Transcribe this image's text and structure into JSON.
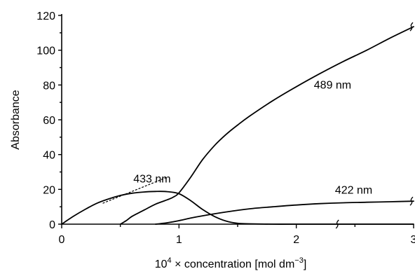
{
  "chart_data": {
    "type": "line",
    "title": "",
    "xlabel": {
      "main": "10",
      "sup": "4",
      "mid": " × concentration [mol dm",
      "unit_sup": "−3",
      "end": "]"
    },
    "ylabel": "Absorbance",
    "xlim": [
      0,
      3
    ],
    "ylim": [
      0,
      120
    ],
    "x_ticks": [
      0,
      1,
      2,
      3
    ],
    "x_tick_labels": [
      "0",
      "1",
      "2",
      "3"
    ],
    "y_ticks": [
      0,
      20,
      40,
      60,
      80,
      100,
      120
    ],
    "y_tick_labels": [
      "0",
      "20",
      "40",
      "60",
      "80",
      "100",
      "120"
    ],
    "grid": false,
    "series": [
      {
        "name": "433 nm",
        "x": [
          0,
          0.1,
          0.2,
          0.3,
          0.4,
          0.5,
          0.6,
          0.7,
          0.8,
          0.9,
          1.0,
          1.1,
          1.2,
          1.3,
          1.4,
          1.5,
          1.6,
          1.8,
          2.0,
          2.3,
          2.6,
          3.0
        ],
        "y": [
          0,
          4.5,
          8.5,
          12,
          14.5,
          16.5,
          17.8,
          18.5,
          18.8,
          18.7,
          17.5,
          13.5,
          8.5,
          4.5,
          1.8,
          0.5,
          0.2,
          0,
          0,
          0,
          0,
          0
        ]
      },
      {
        "name": "489 nm",
        "x": [
          0.5,
          0.55,
          0.6,
          0.7,
          0.8,
          0.9,
          0.95,
          1.0,
          1.1,
          1.2,
          1.3,
          1.4,
          1.5,
          1.6,
          1.8,
          2.0,
          2.2,
          2.4,
          2.6,
          2.8,
          3.0
        ],
        "y": [
          0,
          2,
          4.5,
          8,
          11.5,
          14,
          15.5,
          18,
          27,
          37,
          45,
          51.5,
          57,
          62,
          71,
          79,
          86.5,
          93.5,
          100,
          107,
          113.5
        ]
      },
      {
        "name": "422 nm",
        "x": [
          0.8,
          0.9,
          1.0,
          1.1,
          1.2,
          1.4,
          1.6,
          1.8,
          2.0,
          2.2,
          2.4,
          2.6,
          2.8,
          3.0
        ],
        "y": [
          0,
          0.8,
          2,
          3.5,
          4.8,
          7,
          8.8,
          10,
          11,
          11.8,
          12.3,
          12.6,
          12.9,
          13.2
        ]
      }
    ],
    "annotations": {
      "label_433": "433 nm",
      "label_489": "489 nm",
      "label_422": "422 nm"
    },
    "dashed_extension": {
      "x": [
        0.35,
        0.9
      ],
      "y": [
        12,
        27
      ]
    },
    "axis_breaks": [
      {
        "x": 2.35,
        "y": 0
      },
      {
        "x": 3.0,
        "y": 13.2
      },
      {
        "x": 3.0,
        "y": 113.5
      }
    ]
  }
}
